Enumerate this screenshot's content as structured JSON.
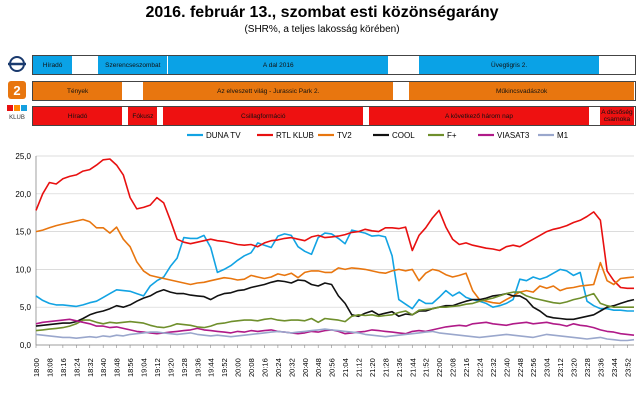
{
  "title": "2016. február 13., szombat esti közönségarány",
  "subtitle": "(SHR%, a teljes lakosság körében)",
  "logos": {
    "rtl_small": "KLUB"
  },
  "bands": [
    {
      "key": "m1",
      "color": "#0aa2e6",
      "segments": [
        {
          "start": 0,
          "end": 8,
          "label": "Híradó"
        },
        {
          "start": 8,
          "end": 13,
          "label": ""
        },
        {
          "start": 13,
          "end": 27,
          "label": "Szerencseszombat"
        },
        {
          "start": 27,
          "end": 71,
          "label": "A dal 2016"
        },
        {
          "start": 71,
          "end": 77,
          "label": ""
        },
        {
          "start": 77,
          "end": 113,
          "label": "Üvegtigris 2."
        },
        {
          "start": 113,
          "end": 120,
          "label": ""
        }
      ]
    },
    {
      "key": "tv2",
      "color": "#e8760f",
      "segments": [
        {
          "start": 0,
          "end": 18,
          "label": "Tények"
        },
        {
          "start": 18,
          "end": 22,
          "label": ""
        },
        {
          "start": 22,
          "end": 72,
          "label": "Az elveszett világ - Jurassic Park 2."
        },
        {
          "start": 72,
          "end": 75,
          "label": ""
        },
        {
          "start": 75,
          "end": 120,
          "label": "Műkincsvadászok"
        }
      ]
    },
    {
      "key": "rtl",
      "color": "#ee1111",
      "segments": [
        {
          "start": 0,
          "end": 18,
          "label": "Híradó"
        },
        {
          "start": 18,
          "end": 19,
          "label": ""
        },
        {
          "start": 19,
          "end": 25,
          "label": "Fókusz"
        },
        {
          "start": 25,
          "end": 26,
          "label": ""
        },
        {
          "start": 26,
          "end": 66,
          "label": "Csillagformáció"
        },
        {
          "start": 66,
          "end": 67,
          "label": ""
        },
        {
          "start": 67,
          "end": 111,
          "label": "A következő három nap"
        },
        {
          "start": 111,
          "end": 113,
          "label": ""
        },
        {
          "start": 113,
          "end": 120,
          "label": "A dicsőség csarnoka"
        }
      ]
    }
  ],
  "chart_data": {
    "type": "line",
    "legend_position": "top",
    "ylim": [
      0,
      25
    ],
    "yticks": [
      "0,0",
      "5,0",
      "10,0",
      "15,0",
      "20,0",
      "25,0"
    ],
    "grid": true,
    "xticks": [
      "18:00",
      "18:08",
      "18:16",
      "18:24",
      "18:32",
      "18:40",
      "18:48",
      "18:56",
      "19:04",
      "19:12",
      "19:20",
      "19:28",
      "19:36",
      "19:44",
      "19:52",
      "20:00",
      "20:08",
      "20:16",
      "20:24",
      "20:32",
      "20:40",
      "20:48",
      "20:56",
      "21:04",
      "21:12",
      "21:20",
      "21:28",
      "21:36",
      "21:44",
      "21:52",
      "22:00",
      "22:08",
      "22:16",
      "22:24",
      "22:32",
      "22:40",
      "22:48",
      "22:56",
      "23:04",
      "23:12",
      "23:20",
      "23:28",
      "23:36",
      "23:44",
      "23:52"
    ],
    "x_minutes": [
      0,
      4,
      8,
      12,
      16,
      20,
      24,
      28,
      32,
      36,
      40,
      44,
      48,
      52,
      56,
      60,
      64,
      68,
      72,
      76,
      80,
      84,
      88,
      92,
      96,
      100,
      104,
      108,
      112,
      116,
      120,
      124,
      128,
      132,
      136,
      140,
      144,
      148,
      152,
      156,
      160,
      164,
      168,
      172,
      176,
      180,
      184,
      188,
      192,
      196,
      200,
      204,
      208,
      212,
      216,
      220,
      224,
      228,
      232,
      236,
      240,
      244,
      248,
      252,
      256,
      260,
      264,
      268,
      272,
      276,
      280,
      284,
      288,
      292,
      296,
      300,
      304,
      308,
      312,
      316,
      320,
      324,
      328,
      332,
      336,
      340,
      344,
      348,
      352,
      356
    ],
    "series": [
      {
        "name": "DUNA TV",
        "color": "#12a3e3",
        "values": [
          6.5,
          5.9,
          5.5,
          5.3,
          5.3,
          5.2,
          5.1,
          5.3,
          5.6,
          5.8,
          6.3,
          6.8,
          7.3,
          7.2,
          7.1,
          6.8,
          6.5,
          7.8,
          8.5,
          9.0,
          10.4,
          11.5,
          14.2,
          14.1,
          14.1,
          14.5,
          12.9,
          9.6,
          10.0,
          10.5,
          11.2,
          11.8,
          12.2,
          13.5,
          13.2,
          12.9,
          14.4,
          14.7,
          14.5,
          13.0,
          12.4,
          12.0,
          14.2,
          14.8,
          14.7,
          14.1,
          13.4,
          15.2,
          15.0,
          14.8,
          14.4,
          14.5,
          14.3,
          11.8,
          6.0,
          5.4,
          4.8,
          6.0,
          5.5,
          5.5,
          6.3,
          7.2,
          6.5,
          7.0,
          6.3,
          6.0,
          5.8,
          5.5,
          5.0,
          5.2,
          5.5,
          6.0,
          8.7,
          8.5,
          9.0,
          8.7,
          9.0,
          9.5,
          10.0,
          9.8,
          9.2,
          9.6,
          5.8,
          5.2,
          4.8,
          4.8,
          4.6,
          4.6,
          4.5,
          4.5
        ]
      },
      {
        "name": "RTL KLUB",
        "color": "#e81010",
        "values": [
          17.8,
          20.0,
          21.5,
          21.3,
          22.0,
          22.3,
          22.5,
          23.0,
          23.2,
          23.8,
          24.5,
          24.6,
          23.8,
          22.5,
          19.5,
          18.0,
          18.2,
          18.5,
          19.5,
          18.8,
          16.5,
          14.0,
          13.6,
          13.4,
          13.6,
          13.8,
          14.0,
          13.8,
          13.7,
          13.5,
          13.3,
          13.2,
          13.3,
          13.0,
          13.5,
          13.8,
          13.9,
          14.1,
          14.2,
          14.0,
          13.8,
          14.3,
          14.5,
          14.2,
          14.3,
          14.4,
          14.6,
          14.9,
          15.0,
          15.3,
          15.1,
          15.0,
          15.5,
          15.5,
          15.4,
          15.6,
          12.5,
          14.5,
          15.5,
          16.8,
          17.8,
          15.6,
          14.0,
          13.3,
          13.5,
          13.2,
          13.0,
          12.8,
          12.7,
          12.5,
          13.0,
          13.2,
          13.0,
          13.5,
          14.0,
          14.5,
          15.0,
          15.3,
          15.5,
          15.8,
          16.2,
          16.5,
          17.0,
          17.6,
          16.5,
          9.8,
          8.5,
          7.6,
          7.5,
          7.5
        ]
      },
      {
        "name": "TV2",
        "color": "#e8760f",
        "values": [
          15.0,
          15.2,
          15.5,
          15.8,
          16.0,
          16.2,
          16.4,
          16.6,
          16.3,
          15.5,
          15.5,
          14.8,
          15.6,
          14.0,
          13.0,
          11.0,
          9.8,
          9.2,
          9.0,
          8.8,
          8.6,
          8.4,
          8.2,
          8.0,
          8.2,
          8.3,
          8.5,
          8.7,
          8.9,
          8.8,
          8.6,
          8.7,
          9.2,
          9.0,
          8.8,
          9.0,
          9.4,
          9.2,
          9.5,
          8.9,
          9.6,
          9.8,
          9.8,
          9.6,
          9.6,
          10.2,
          10.0,
          10.2,
          10.1,
          10.0,
          9.8,
          9.6,
          9.5,
          9.8,
          10.0,
          9.8,
          10.0,
          8.5,
          9.5,
          10.0,
          9.8,
          9.3,
          9.0,
          9.2,
          9.5,
          7.2,
          6.0,
          5.8,
          5.6,
          5.5,
          6.0,
          6.5,
          7.0,
          7.2,
          7.0,
          7.8,
          7.5,
          7.8,
          7.2,
          7.5,
          7.6,
          7.8,
          7.9,
          8.0,
          10.9,
          8.5,
          8.0,
          8.8,
          8.9,
          9.0
        ]
      },
      {
        "name": "COOL",
        "color": "#111111",
        "values": [
          2.5,
          2.6,
          2.7,
          2.8,
          2.9,
          2.9,
          3.1,
          3.5,
          4.0,
          4.3,
          4.5,
          4.8,
          5.2,
          5.0,
          5.3,
          5.8,
          6.2,
          6.5,
          7.0,
          7.3,
          7.0,
          6.8,
          6.8,
          6.6,
          6.5,
          6.4,
          6.0,
          6.5,
          6.8,
          6.9,
          7.2,
          7.3,
          7.6,
          7.8,
          8.0,
          8.3,
          8.5,
          8.4,
          8.2,
          8.6,
          8.5,
          8.0,
          7.8,
          8.2,
          8.0,
          6.5,
          5.5,
          4.0,
          3.8,
          4.2,
          4.5,
          4.0,
          4.2,
          4.4,
          3.8,
          4.1,
          4.0,
          4.5,
          4.5,
          4.8,
          5.0,
          5.2,
          5.2,
          5.5,
          5.8,
          6.0,
          6.0,
          6.2,
          6.5,
          6.6,
          6.8,
          6.5,
          6.5,
          6.0,
          5.0,
          4.5,
          3.8,
          3.6,
          3.5,
          3.4,
          3.4,
          3.6,
          3.8,
          4.0,
          4.5,
          5.0,
          5.2,
          5.5,
          5.8,
          6.0
        ]
      },
      {
        "name": "F+",
        "color": "#6f8f2c",
        "values": [
          1.9,
          2.0,
          2.1,
          2.2,
          2.3,
          2.5,
          2.8,
          3.3,
          3.3,
          3.0,
          2.8,
          3.0,
          2.9,
          3.0,
          3.1,
          3.0,
          2.9,
          2.6,
          2.4,
          2.3,
          2.5,
          2.8,
          2.7,
          2.6,
          2.4,
          2.3,
          2.5,
          2.8,
          2.9,
          3.1,
          3.2,
          3.3,
          3.3,
          3.2,
          3.4,
          3.5,
          3.3,
          3.2,
          3.3,
          3.3,
          3.2,
          3.5,
          3.0,
          3.5,
          3.4,
          3.3,
          3.1,
          3.8,
          4.0,
          3.9,
          4.0,
          3.8,
          3.9,
          4.0,
          4.3,
          4.5,
          4.0,
          4.6,
          4.7,
          4.8,
          5.0,
          5.0,
          5.1,
          5.2,
          5.4,
          5.5,
          5.8,
          6.0,
          6.2,
          6.5,
          6.8,
          7.0,
          7.0,
          6.5,
          6.2,
          6.0,
          5.8,
          5.6,
          5.5,
          5.7,
          6.0,
          6.2,
          6.5,
          6.8,
          5.5,
          5.2,
          5.0,
          5.0,
          5.0,
          5.0
        ]
      },
      {
        "name": "VIASAT3",
        "color": "#b01a88",
        "values": [
          2.8,
          3.0,
          3.1,
          3.2,
          3.3,
          3.4,
          3.2,
          3.0,
          2.8,
          2.5,
          2.5,
          2.3,
          2.4,
          2.2,
          2.0,
          1.8,
          1.7,
          1.6,
          1.5,
          1.6,
          1.7,
          1.8,
          1.9,
          2.0,
          2.2,
          2.0,
          1.9,
          1.8,
          1.7,
          1.6,
          1.8,
          1.7,
          1.9,
          1.8,
          1.9,
          2.0,
          1.8,
          1.7,
          1.6,
          1.5,
          1.6,
          1.8,
          1.7,
          1.9,
          2.0,
          1.8,
          1.5,
          1.6,
          1.7,
          1.8,
          2.0,
          1.9,
          1.8,
          1.7,
          1.6,
          1.5,
          1.8,
          1.9,
          1.8,
          2.0,
          2.2,
          2.4,
          2.5,
          2.6,
          2.5,
          2.8,
          2.9,
          3.0,
          2.8,
          2.7,
          2.6,
          2.8,
          2.9,
          3.0,
          2.8,
          2.9,
          3.0,
          2.8,
          2.7,
          2.5,
          2.8,
          2.6,
          2.5,
          2.3,
          2.0,
          1.8,
          1.7,
          1.5,
          1.4,
          1.3
        ]
      },
      {
        "name": "M1",
        "color": "#9aa7cc",
        "values": [
          1.4,
          1.3,
          1.2,
          1.1,
          1.0,
          1.0,
          0.9,
          1.0,
          1.1,
          1.0,
          1.2,
          1.1,
          1.3,
          1.2,
          1.4,
          1.5,
          1.6,
          1.7,
          1.7,
          1.6,
          1.5,
          1.4,
          1.5,
          1.6,
          1.4,
          1.3,
          1.2,
          1.3,
          1.2,
          1.1,
          1.2,
          1.3,
          1.4,
          1.5,
          1.6,
          1.7,
          1.8,
          1.7,
          1.6,
          1.7,
          1.8,
          1.9,
          2.0,
          2.1,
          2.0,
          1.9,
          1.8,
          1.7,
          1.6,
          1.4,
          1.3,
          1.2,
          1.1,
          1.2,
          1.3,
          1.4,
          1.5,
          1.6,
          1.7,
          1.8,
          1.6,
          1.5,
          1.4,
          1.3,
          1.2,
          1.1,
          1.0,
          1.1,
          1.2,
          1.3,
          1.4,
          1.3,
          1.2,
          1.1,
          1.0,
          1.2,
          1.4,
          1.3,
          1.2,
          1.1,
          1.0,
          0.9,
          0.8,
          0.9,
          1.0,
          0.8,
          0.7,
          0.6,
          0.6,
          0.7
        ]
      }
    ]
  }
}
